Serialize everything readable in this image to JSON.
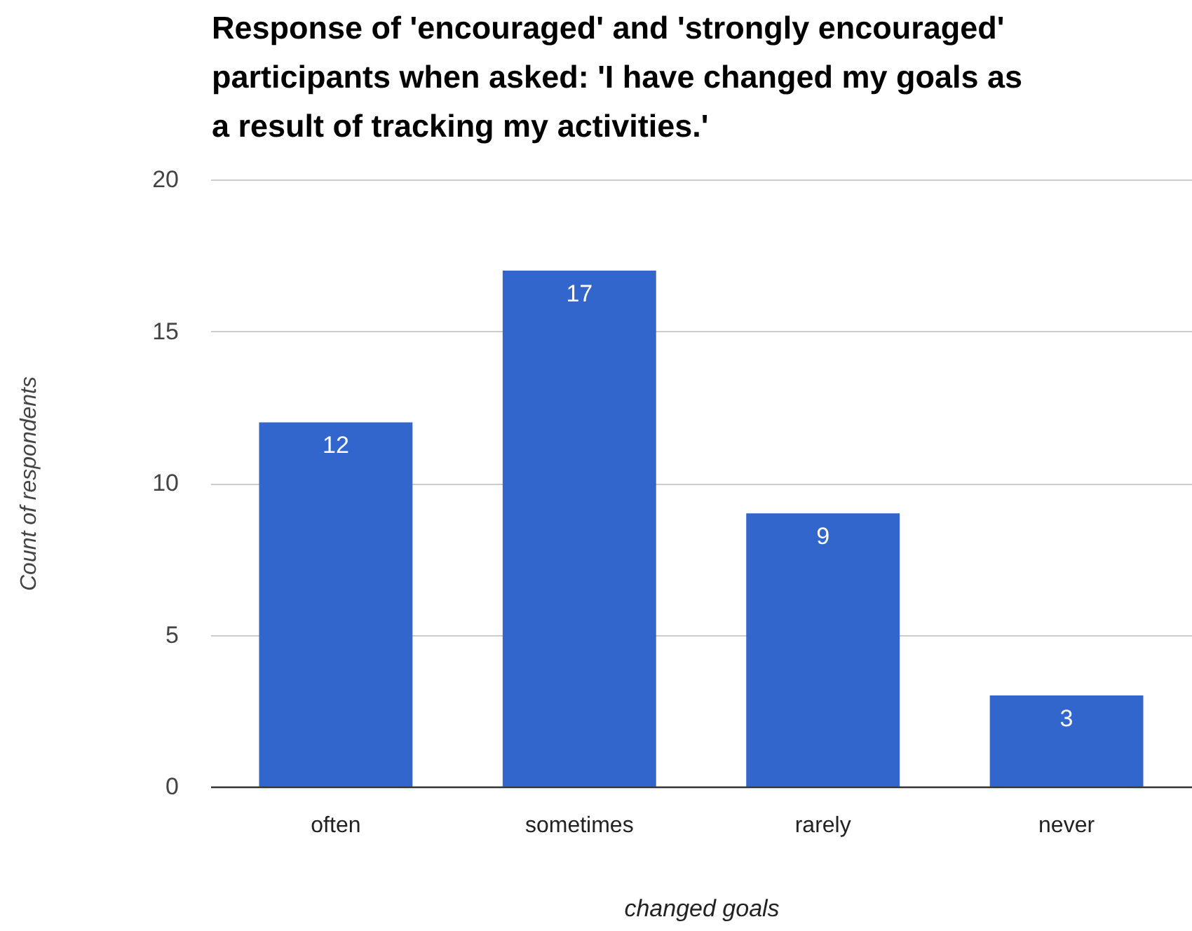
{
  "chart_data": {
    "type": "bar",
    "title": "Response of 'encouraged' and 'strongly encouraged' participants when asked: 'I have changed my goals as a result of tracking my activities.'",
    "xlabel": "changed goals",
    "ylabel": "Count of respondents",
    "categories": [
      "often",
      "sometimes",
      "rarely",
      "never"
    ],
    "values": [
      12,
      17,
      9,
      3
    ],
    "color": "#3366cc",
    "ylim": [
      0,
      20
    ],
    "yticks": [
      0,
      5,
      10,
      15,
      20
    ],
    "grid": "y",
    "data_labels": true
  }
}
